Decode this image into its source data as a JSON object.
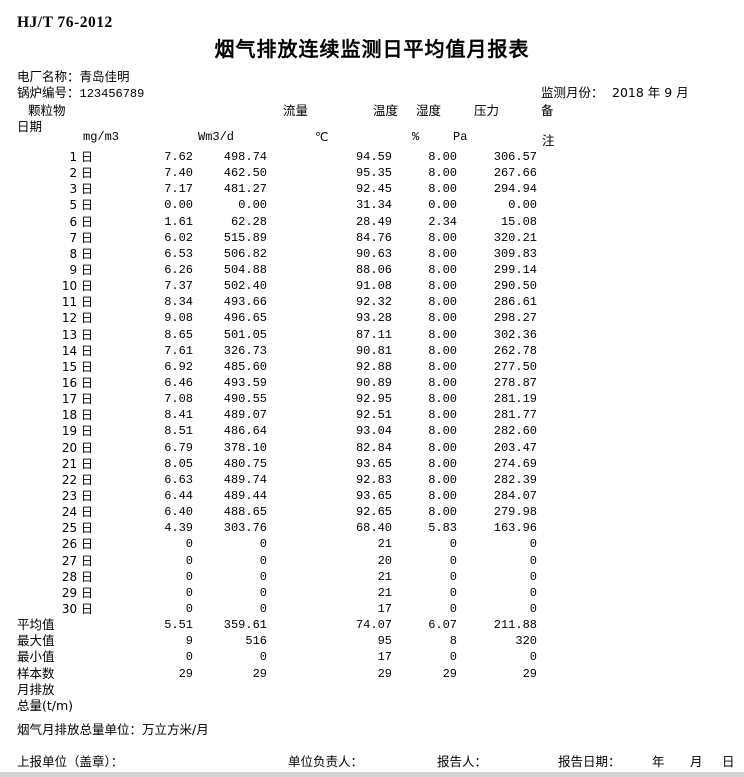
{
  "header": {
    "standard_code": "HJ/T 76-2012",
    "title": "烟气排放连续监测日平均值月报表",
    "plant_label": "电厂名称：",
    "plant_name": "青岛佳明",
    "boiler_label": "锅炉编号：",
    "boiler_no": "123456789",
    "month_label": "监测月份：",
    "month_value": "2018 年 9 月"
  },
  "columns": {
    "date_label": "日期",
    "particulate": "颗粒物",
    "flow": "流量",
    "temperature": "温度",
    "humidity": "湿度",
    "pressure": "压力",
    "remark_top": "备",
    "unit_particulate": "mg/m3",
    "unit_flow": "Wm3/d",
    "unit_temperature": "℃",
    "unit_humidity": "%",
    "unit_pressure": "Pa",
    "remark_bottom": "注"
  },
  "table": {
    "day_rows": [
      {
        "label": "1 日",
        "cells": [
          "7.62",
          "498.74",
          "94.59",
          "8.00",
          "306.57"
        ]
      },
      {
        "label": "2 日",
        "cells": [
          "7.40",
          "462.50",
          "95.35",
          "8.00",
          "267.66"
        ]
      },
      {
        "label": "3 日",
        "cells": [
          "7.17",
          "481.27",
          "92.45",
          "8.00",
          "294.94"
        ]
      },
      {
        "label": "5 日",
        "cells": [
          "0.00",
          "0.00",
          "31.34",
          "0.00",
          "0.00"
        ]
      },
      {
        "label": "6 日",
        "cells": [
          "1.61",
          "62.28",
          "28.49",
          "2.34",
          "15.08"
        ]
      },
      {
        "label": "7 日",
        "cells": [
          "6.02",
          "515.89",
          "84.76",
          "8.00",
          "320.21"
        ]
      },
      {
        "label": "8 日",
        "cells": [
          "6.53",
          "506.82",
          "90.63",
          "8.00",
          "309.83"
        ]
      },
      {
        "label": "9 日",
        "cells": [
          "6.26",
          "504.88",
          "88.06",
          "8.00",
          "299.14"
        ]
      },
      {
        "label": "10 日",
        "cells": [
          "7.37",
          "502.40",
          "91.08",
          "8.00",
          "290.50"
        ]
      },
      {
        "label": "11 日",
        "cells": [
          "8.34",
          "493.66",
          "92.32",
          "8.00",
          "286.61"
        ]
      },
      {
        "label": "12 日",
        "cells": [
          "9.08",
          "496.65",
          "93.28",
          "8.00",
          "298.27"
        ]
      },
      {
        "label": "13 日",
        "cells": [
          "8.65",
          "501.05",
          "87.11",
          "8.00",
          "302.36"
        ]
      },
      {
        "label": "14 日",
        "cells": [
          "7.61",
          "326.73",
          "90.81",
          "8.00",
          "262.78"
        ]
      },
      {
        "label": "15 日",
        "cells": [
          "6.92",
          "485.60",
          "92.88",
          "8.00",
          "277.50"
        ]
      },
      {
        "label": "16 日",
        "cells": [
          "6.46",
          "493.59",
          "90.89",
          "8.00",
          "278.87"
        ]
      },
      {
        "label": "17 日",
        "cells": [
          "7.08",
          "490.55",
          "92.95",
          "8.00",
          "281.19"
        ]
      },
      {
        "label": "18 日",
        "cells": [
          "8.41",
          "489.07",
          "92.51",
          "8.00",
          "281.77"
        ]
      },
      {
        "label": "19 日",
        "cells": [
          "8.51",
          "486.64",
          "93.04",
          "8.00",
          "282.60"
        ]
      },
      {
        "label": "20 日",
        "cells": [
          "6.79",
          "378.10",
          "82.84",
          "8.00",
          "203.47"
        ]
      },
      {
        "label": "21 日",
        "cells": [
          "8.05",
          "480.75",
          "93.65",
          "8.00",
          "274.69"
        ]
      },
      {
        "label": "22 日",
        "cells": [
          "6.63",
          "489.74",
          "92.83",
          "8.00",
          "282.39"
        ]
      },
      {
        "label": "23 日",
        "cells": [
          "6.44",
          "489.44",
          "93.65",
          "8.00",
          "284.07"
        ]
      },
      {
        "label": "24 日",
        "cells": [
          "6.40",
          "488.65",
          "92.65",
          "8.00",
          "279.98"
        ]
      },
      {
        "label": "25 日",
        "cells": [
          "4.39",
          "303.76",
          "68.40",
          "5.83",
          "163.96"
        ]
      },
      {
        "label": "26 日",
        "cells": [
          "0",
          "0",
          "21",
          "0",
          "0"
        ]
      },
      {
        "label": "27 日",
        "cells": [
          "0",
          "0",
          "20",
          "0",
          "0"
        ]
      },
      {
        "label": "28 日",
        "cells": [
          "0",
          "0",
          "21",
          "0",
          "0"
        ]
      },
      {
        "label": "29 日",
        "cells": [
          "0",
          "0",
          "21",
          "0",
          "0"
        ]
      },
      {
        "label": "30 日",
        "cells": [
          "0",
          "0",
          "17",
          "0",
          "0"
        ]
      }
    ],
    "summary_rows": [
      {
        "label": "平均值",
        "cells": [
          "5.51",
          "359.61",
          "74.07",
          "6.07",
          "211.88"
        ]
      },
      {
        "label": "最大值",
        "cells": [
          "9",
          "516",
          "95",
          "8",
          "320"
        ]
      },
      {
        "label": "最小值",
        "cells": [
          "0",
          "0",
          "17",
          "0",
          "0"
        ]
      },
      {
        "label": "样本数",
        "cells": [
          "29",
          "29",
          "29",
          "29",
          "29"
        ]
      },
      {
        "label": "月排放",
        "cells": [
          "",
          "",
          "",
          "",
          ""
        ]
      },
      {
        "label": "总量(t/m)",
        "cells": [
          "",
          "",
          "",
          "",
          ""
        ]
      }
    ]
  },
  "note": "烟气月排放总量单位：万立方米/月",
  "footer": {
    "report_unit": "上报单位（盖章）：",
    "unit_head": "单位负责人：",
    "reporter": "报告人：",
    "report_date": "报告日期：",
    "year": "年",
    "month": "月",
    "day": "日"
  },
  "colors": {
    "background": "#ffffff",
    "text": "#000000",
    "bottom_bar": "#d2d2d2"
  }
}
